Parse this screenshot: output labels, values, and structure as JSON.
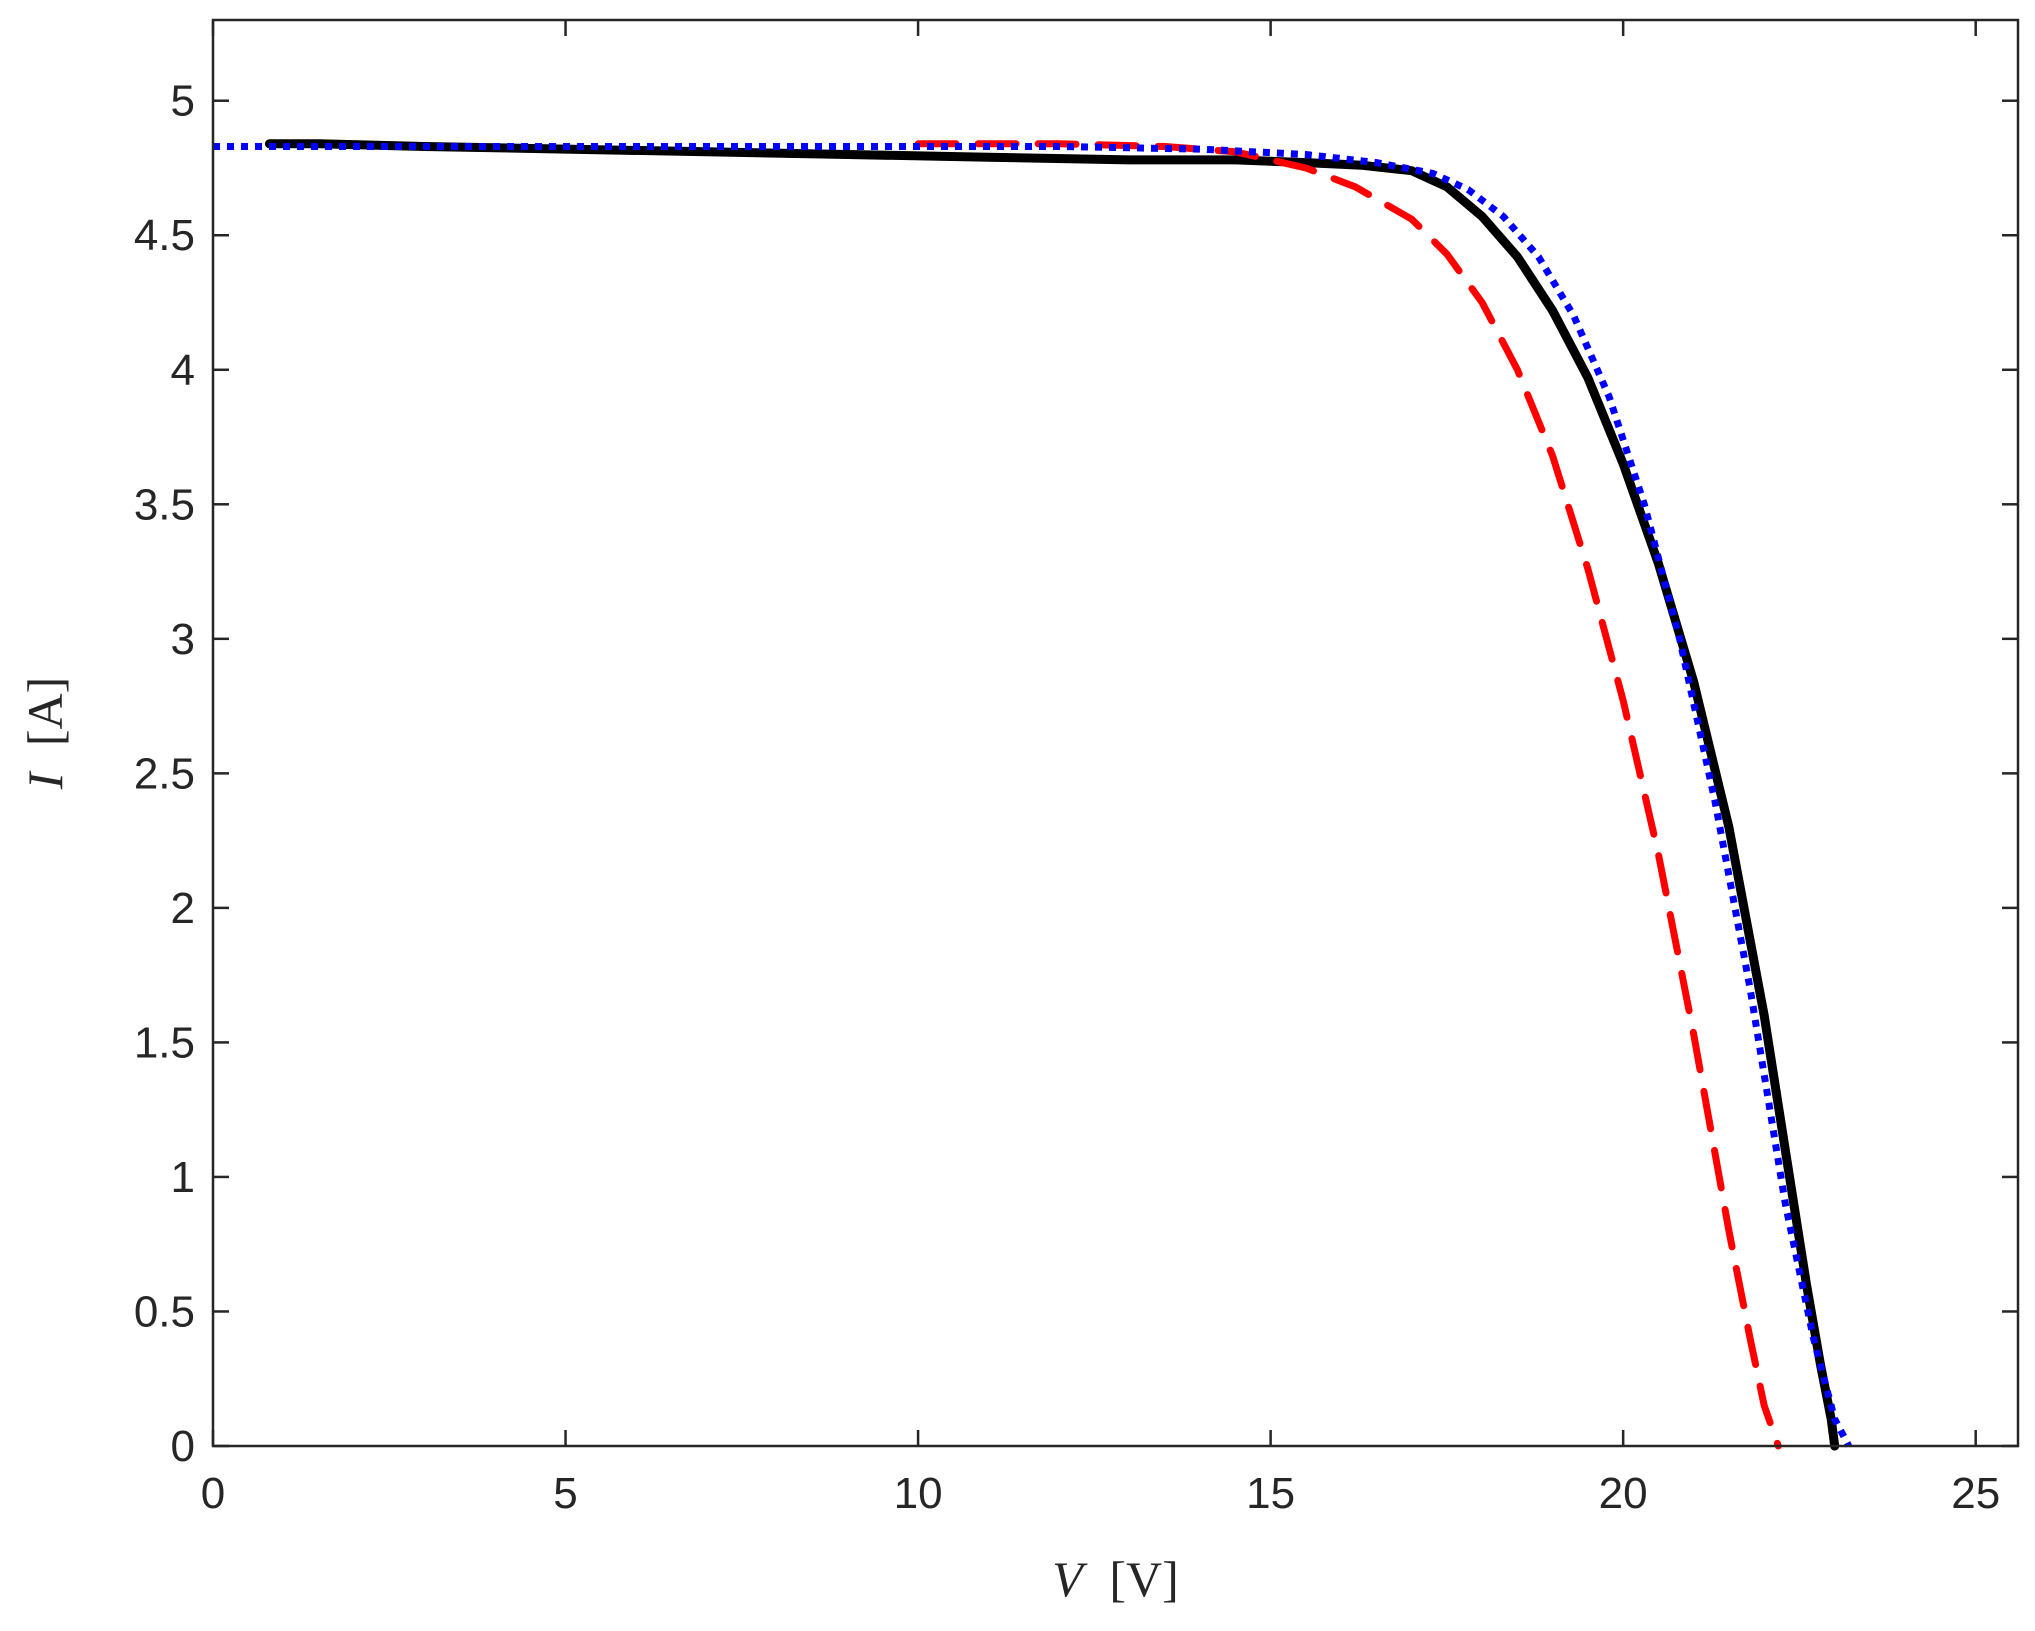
{
  "chart_data": {
    "type": "line",
    "title": "",
    "xlabel": {
      "variable": "V",
      "unit": "[V]"
    },
    "ylabel": {
      "variable": "I",
      "unit": "[A]"
    },
    "xlim": [
      0,
      25.6
    ],
    "ylim": [
      0,
      5.3
    ],
    "xticks": [
      0,
      5,
      10,
      15,
      20,
      25
    ],
    "yticks": [
      0,
      0.5,
      1,
      1.5,
      2,
      2.5,
      3,
      3.5,
      4,
      4.5,
      5
    ],
    "xtick_labels": [
      "0",
      "5",
      "10",
      "15",
      "20",
      "25"
    ],
    "ytick_labels": [
      "0",
      "0.5",
      "1",
      "1.5",
      "2",
      "2.5",
      "3",
      "3.5",
      "4",
      "4.5",
      "5"
    ],
    "grid": false,
    "legend": "none",
    "series": [
      {
        "style": "solid-thick",
        "color": "#000000",
        "x": [
          0.8,
          1.5,
          3,
          5,
          7,
          9,
          11,
          13,
          14.5,
          15.5,
          16.3,
          17,
          17.5,
          18,
          18.5,
          19,
          19.5,
          20,
          20.5,
          21,
          21.5,
          22,
          22.3,
          22.6,
          22.8,
          22.95,
          23.0
        ],
        "y": [
          4.84,
          4.84,
          4.83,
          4.82,
          4.81,
          4.8,
          4.79,
          4.78,
          4.78,
          4.77,
          4.76,
          4.74,
          4.68,
          4.57,
          4.42,
          4.22,
          3.97,
          3.65,
          3.28,
          2.84,
          2.3,
          1.6,
          1.1,
          0.6,
          0.3,
          0.1,
          0.0
        ]
      },
      {
        "style": "dashed",
        "color": "#ff0000",
        "x": [
          10,
          12,
          13.5,
          14.5,
          15.5,
          16.2,
          17,
          17.5,
          18,
          18.5,
          19,
          19.5,
          20,
          20.5,
          21,
          21.5,
          21.8,
          22.0,
          22.2
        ],
        "y": [
          4.84,
          4.84,
          4.83,
          4.81,
          4.75,
          4.68,
          4.56,
          4.43,
          4.25,
          4.0,
          3.68,
          3.26,
          2.77,
          2.2,
          1.53,
          0.8,
          0.4,
          0.15,
          0.0
        ]
      },
      {
        "style": "dotted",
        "color": "#0000ff",
        "x": [
          0,
          3,
          6,
          9,
          12,
          14,
          15.5,
          16.5,
          17.3,
          17.8,
          18.3,
          18.8,
          19.3,
          19.8,
          20.3,
          20.8,
          21.3,
          21.8,
          22.3,
          22.7,
          23.0,
          23.2
        ],
        "y": [
          4.83,
          4.83,
          4.83,
          4.83,
          4.83,
          4.82,
          4.8,
          4.77,
          4.73,
          4.67,
          4.57,
          4.42,
          4.2,
          3.9,
          3.5,
          3.0,
          2.4,
          1.7,
          0.9,
          0.4,
          0.1,
          0.0
        ]
      }
    ]
  }
}
